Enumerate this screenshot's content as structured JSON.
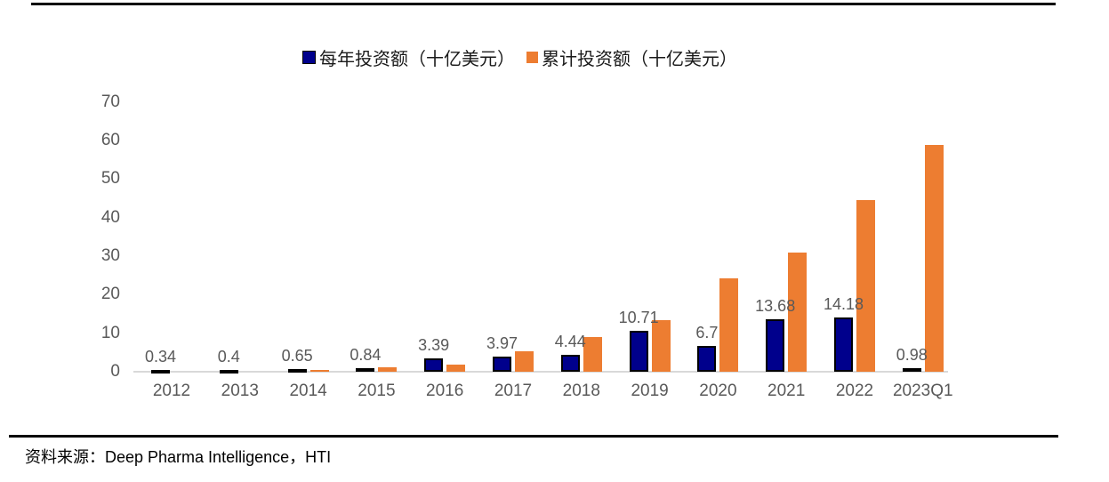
{
  "colors": {
    "annual_bar": "#00008C",
    "annual_bar_border": "#000000",
    "cumulative_bar": "#ED7D31",
    "axis_line": "#D9D9D9",
    "tick_text": "#595959",
    "rule": "#000000"
  },
  "chart_data": {
    "type": "bar",
    "title": "",
    "xlabel": "",
    "ylabel": "",
    "categories": [
      "2012",
      "2013",
      "2014",
      "2015",
      "2016",
      "2017",
      "2018",
      "2019",
      "2020",
      "2021",
      "2022",
      "2023Q1"
    ],
    "series": [
      {
        "name": "每年投资额（十亿美元）",
        "color": "#00008C",
        "values": [
          0.34,
          0.4,
          0.65,
          0.84,
          3.39,
          3.97,
          4.44,
          10.71,
          6.7,
          13.68,
          14.18,
          0.98
        ],
        "labels": [
          "0.34",
          "0.4",
          "0.65",
          "0.84",
          "3.39",
          "3.97",
          "4.44",
          "10.71",
          "6.7",
          "13.68",
          "14.18",
          "0.98"
        ]
      },
      {
        "name": "累计投资额（十亿美元）",
        "color": "#ED7D31",
        "values": [
          0,
          0,
          0.45,
          1.25,
          1.85,
          5.4,
          9.1,
          13.4,
          24.2,
          30.9,
          44.5,
          58.8
        ],
        "labels": []
      }
    ],
    "ylim": [
      0,
      70
    ],
    "yticks": [
      0,
      10,
      20,
      30,
      40,
      50,
      60,
      70
    ],
    "grid": false,
    "legend_position": "top"
  },
  "footer": {
    "source_prefix": "资料来源：",
    "source_text": "Deep Pharma Intelligence，HTI"
  }
}
